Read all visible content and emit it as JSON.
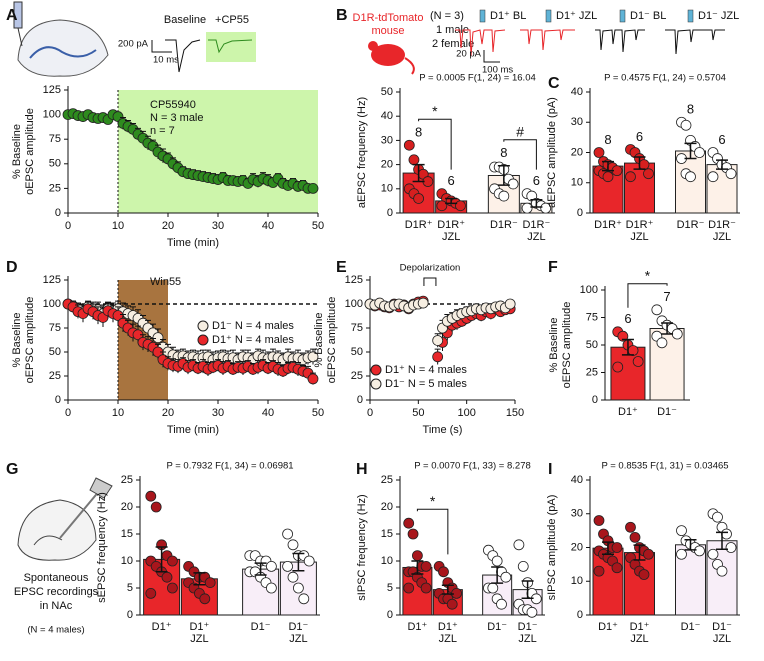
{
  "chart_data": [
    {
      "panel": "A",
      "type": "timecourse",
      "trace_labels": [
        "Baseline",
        "+CP55"
      ],
      "scale_labels": [
        "200 pA",
        "10 ms"
      ],
      "annotation": [
        "CP55940",
        "N = 3 male",
        "n = 7"
      ],
      "shade": [
        10,
        50
      ],
      "shade_color": "#cdf5ab",
      "xlabel": "Time (min)",
      "ylabel": [
        "% Baseline",
        "oEPSC amplitude"
      ],
      "xlim": [
        0,
        50
      ],
      "ylim": [
        0,
        125
      ],
      "xticks": [
        0,
        10,
        20,
        30,
        40,
        50
      ],
      "yticks": [
        0,
        25,
        50,
        75,
        100,
        125
      ],
      "x": [
        0,
        1,
        2,
        3,
        4,
        5,
        6,
        7,
        8,
        9,
        10,
        11,
        12,
        13,
        14,
        15,
        16,
        17,
        18,
        19,
        20,
        21,
        22,
        23,
        24,
        25,
        26,
        27,
        28,
        29,
        30,
        31,
        32,
        33,
        34,
        35,
        36,
        37,
        38,
        39,
        40,
        41,
        42,
        43,
        44,
        45,
        46,
        47,
        48,
        49
      ],
      "series": [
        {
          "color": "#2e8b1e",
          "values": [
            100,
            101,
            99,
            98,
            100,
            97,
            96,
            97,
            95,
            100,
            98,
            91,
            88,
            85,
            80,
            76,
            71,
            68,
            62,
            58,
            55,
            50,
            46,
            42,
            40,
            39,
            38,
            37,
            36,
            35,
            34,
            36,
            33,
            33,
            32,
            33,
            30,
            34,
            32,
            35,
            33,
            31,
            35,
            30,
            28,
            30,
            27,
            28,
            25,
            25
          ],
          "errors": [
            2,
            2,
            3,
            3,
            2,
            3,
            3,
            3,
            4,
            3,
            4,
            6,
            6,
            6,
            6,
            7,
            7,
            6,
            7,
            7,
            6,
            6,
            6,
            5,
            5,
            5,
            5,
            5,
            5,
            5,
            5,
            5,
            5,
            4,
            5,
            5,
            5,
            6,
            6,
            6,
            6,
            5,
            5,
            5,
            5,
            5,
            5,
            5,
            4,
            4
          ]
        }
      ]
    },
    {
      "panel": "B",
      "type": "bar",
      "mouse_label": [
        "D1R-tdTomato",
        "mouse"
      ],
      "cohort": [
        "(N = 3)",
        "1 male",
        "2 female"
      ],
      "trace_labels": [
        "D1⁺ BL",
        "D1⁺ JZL",
        "D1⁻ BL",
        "D1⁻ JZL"
      ],
      "scale_labels": [
        "20 pA",
        "100 ms"
      ],
      "stats": "P = 0.0005  F(1, 24) = 16.04",
      "ylabel": [
        "aEPSC frequency (Hz)"
      ],
      "categories": [
        [
          "D1R⁺"
        ],
        [
          "D1R⁺",
          "JZL"
        ],
        [
          "D1R⁻"
        ],
        [
          "D1R⁻",
          "JZL"
        ]
      ],
      "values": [
        16.5,
        5,
        15.5,
        4
      ],
      "errors": [
        3.5,
        1,
        4,
        1.5
      ],
      "colors": [
        "#e8262a",
        "#e8262a",
        "#fdf1e8",
        "#fdf1e8"
      ],
      "point_colors": [
        "#d61f1f",
        "#d61f1f",
        "#ffffff",
        "#ffffff"
      ],
      "points": [
        [
          28,
          22,
          18,
          16,
          13,
          10,
          8,
          6
        ],
        [
          8,
          6,
          5,
          4,
          3,
          3
        ],
        [
          19,
          19,
          18,
          14,
          12,
          10,
          8,
          7
        ],
        [
          8,
          7,
          4,
          3,
          2,
          2
        ]
      ],
      "n_labels": [
        8,
        6,
        8,
        6
      ],
      "significance": [
        "*",
        "#"
      ],
      "ylim": [
        0,
        50
      ],
      "yticks": [
        0,
        10,
        20,
        30,
        40,
        50
      ]
    },
    {
      "panel": "C",
      "type": "bar",
      "stats": "P = 0.4575  F(1, 24) = 0.5704",
      "ylabel": [
        "aEPSC amplitude (pA)"
      ],
      "categories": [
        [
          "D1R⁺"
        ],
        [
          "D1R⁺",
          "JZL"
        ],
        [
          "D1R⁻"
        ],
        [
          "D1R⁻",
          "JZL"
        ]
      ],
      "values": [
        15.5,
        16.5,
        20.5,
        16
      ],
      "errors": [
        1.5,
        2,
        2.5,
        1.5
      ],
      "colors": [
        "#e8262a",
        "#e8262a",
        "#fdf1e8",
        "#fdf1e8"
      ],
      "point_colors": [
        "#d61f1f",
        "#d61f1f",
        "#ffffff",
        "#ffffff"
      ],
      "points": [
        [
          20,
          17,
          16,
          15,
          14,
          14,
          13,
          12
        ],
        [
          21,
          20,
          18,
          16,
          13,
          12
        ],
        [
          30,
          29,
          24,
          22,
          20,
          18,
          13,
          12
        ],
        [
          20,
          18,
          16,
          15,
          13,
          12
        ]
      ],
      "n_labels": [
        8,
        6,
        8,
        6
      ],
      "ylim": [
        0,
        40
      ],
      "yticks": [
        0,
        10,
        20,
        30,
        40
      ]
    },
    {
      "panel": "D",
      "type": "timecourse",
      "annotation": [
        "Win55"
      ],
      "shade": [
        10,
        20
      ],
      "shade_color": "#a8743f",
      "reference": 100,
      "legend": "center right",
      "xlabel": "Time (min)",
      "ylabel": [
        "% Baseline",
        "oEPSC amplitude"
      ],
      "xlim": [
        0,
        50
      ],
      "ylim": [
        0,
        125
      ],
      "xticks": [
        0,
        10,
        20,
        30,
        40,
        50
      ],
      "yticks": [
        0,
        25,
        50,
        75,
        100,
        125
      ],
      "x": [
        0,
        1,
        2,
        3,
        4,
        5,
        6,
        7,
        8,
        9,
        10,
        11,
        12,
        13,
        14,
        15,
        16,
        17,
        18,
        19,
        20,
        21,
        22,
        23,
        24,
        25,
        26,
        27,
        28,
        29,
        30,
        31,
        32,
        33,
        34,
        35,
        36,
        37,
        38,
        39,
        40,
        41,
        42,
        43,
        44,
        45,
        46,
        47,
        48,
        49
      ],
      "series": [
        {
          "name": "D1⁻ N = 4 males",
          "color": "#f6eee2",
          "values": [
            100,
            98,
            95,
            92,
            97,
            95,
            94,
            90,
            95,
            93,
            95,
            92,
            90,
            88,
            85,
            80,
            75,
            70,
            65,
            55,
            50,
            47,
            45,
            46,
            44,
            45,
            43,
            44,
            45,
            42,
            44,
            45,
            43,
            44,
            42,
            45,
            44,
            42,
            46,
            44,
            43,
            45,
            44,
            42,
            45,
            43,
            44,
            42,
            44,
            45
          ],
          "errors": [
            3,
            5,
            6,
            8,
            6,
            7,
            8,
            9,
            7,
            8,
            8,
            9,
            8,
            9,
            9,
            8,
            8,
            9,
            9,
            8,
            8,
            8,
            7,
            7,
            7,
            7,
            8,
            8,
            7,
            8,
            7,
            7,
            8,
            8,
            7,
            7,
            8,
            7,
            7,
            8,
            7,
            8,
            7,
            7,
            8,
            7,
            8,
            7,
            7,
            8
          ]
        },
        {
          "name": "D1⁺ N = 4 males",
          "color": "#e8262a",
          "values": [
            100,
            97,
            92,
            90,
            95,
            92,
            88,
            86,
            93,
            90,
            88,
            80,
            75,
            70,
            68,
            60,
            58,
            55,
            50,
            42,
            38,
            36,
            35,
            38,
            34,
            36,
            33,
            35,
            32,
            34,
            36,
            33,
            35,
            32,
            34,
            33,
            35,
            32,
            34,
            36,
            33,
            35,
            32,
            30,
            33,
            34,
            32,
            30,
            28,
            22
          ],
          "errors": [
            3,
            6,
            7,
            9,
            7,
            8,
            9,
            10,
            8,
            9,
            9,
            9,
            8,
            9,
            9,
            8,
            8,
            9,
            8,
            8,
            7,
            7,
            7,
            6,
            7,
            6,
            6,
            7,
            7,
            6,
            6,
            7,
            6,
            6,
            6,
            7,
            6,
            6,
            7,
            6,
            6,
            6,
            7,
            6,
            6,
            6,
            7,
            6,
            7,
            6
          ]
        }
      ]
    },
    {
      "panel": "E",
      "type": "timecourse",
      "event": {
        "label": "Depolarization",
        "x": 62
      },
      "reference": 100,
      "legend": "lower left",
      "xlabel": "Time (s)",
      "ylabel": [
        "% Baseline",
        "oEPSC amplitude"
      ],
      "xlim": [
        0,
        150
      ],
      "ylim": [
        0,
        125
      ],
      "xticks": [
        0,
        50,
        100,
        150
      ],
      "yticks": [
        0,
        25,
        50,
        75,
        100,
        125
      ],
      "x": [
        0,
        5,
        10,
        15,
        20,
        25,
        30,
        35,
        40,
        45,
        50,
        55,
        60,
        65,
        70,
        75,
        80,
        85,
        90,
        95,
        100,
        105,
        110,
        115,
        120,
        125,
        130,
        135,
        140,
        145
      ],
      "series": [
        {
          "name": "D1⁺ N = 4 males",
          "color": "#e8262a",
          "values": [
            100,
            98,
            99,
            97,
            96,
            100,
            97,
            99,
            95,
            100,
            102,
            103,
            null,
            null,
            45,
            60,
            70,
            78,
            80,
            82,
            85,
            88,
            90,
            88,
            92,
            90,
            95,
            92,
            94,
            95
          ],
          "errors": [
            3,
            4,
            3,
            4,
            5,
            4,
            3,
            4,
            5,
            4,
            3,
            4,
            null,
            null,
            8,
            9,
            8,
            7,
            7,
            6,
            6,
            6,
            5,
            6,
            5,
            6,
            5,
            5,
            5,
            5
          ]
        },
        {
          "name": "D1⁻ N = 5 males",
          "color": "#f6eee2",
          "values": [
            100,
            99,
            101,
            98,
            97,
            99,
            100,
            98,
            96,
            99,
            100,
            101,
            null,
            null,
            62,
            75,
            82,
            85,
            88,
            90,
            92,
            93,
            95,
            94,
            96,
            95,
            97,
            98,
            96,
            100
          ],
          "errors": [
            2,
            3,
            3,
            3,
            4,
            3,
            3,
            3,
            4,
            3,
            3,
            3,
            null,
            null,
            7,
            8,
            7,
            6,
            6,
            5,
            5,
            5,
            5,
            5,
            4,
            5,
            4,
            4,
            4,
            4
          ]
        }
      ]
    },
    {
      "panel": "F",
      "type": "bar",
      "ylabel": [
        "% Baseline",
        "oEPSC amplitude"
      ],
      "categories": [
        [
          "D1⁺"
        ],
        [
          "D1⁻"
        ]
      ],
      "values": [
        48,
        65
      ],
      "errors": [
        7,
        5
      ],
      "colors": [
        "#e8262a",
        "#fdf1e8"
      ],
      "point_colors": [
        "#e8262a",
        "#ffffff"
      ],
      "points": [
        [
          62,
          58,
          50,
          45,
          35,
          30
        ],
        [
          82,
          72,
          68,
          65,
          60,
          58,
          52
        ]
      ],
      "n_labels": [
        6,
        7
      ],
      "significance": [
        "*"
      ],
      "ylim": [
        0,
        100
      ],
      "yticks": [
        0,
        25,
        50,
        75,
        100
      ]
    },
    {
      "panel": "G",
      "type": "bar",
      "schematic_text": [
        "Spontaneous",
        "EPSC recordings",
        "in NAc",
        "(N = 4 males)"
      ],
      "stats": "P = 0.7932  F(1, 34) = 0.06981",
      "ylabel": [
        "sEPSC frequency (Hz)"
      ],
      "categories": [
        [
          "D1⁺"
        ],
        [
          "D1⁺",
          "JZL"
        ],
        [
          "D1⁻"
        ],
        [
          "D1⁻",
          "JZL"
        ]
      ],
      "values": [
        10.3,
        6.7,
        8.5,
        9.8
      ],
      "errors": [
        2.3,
        1.1,
        1.1,
        1.6
      ],
      "colors": [
        "#e8262a",
        "#e8262a",
        "#f8eef8",
        "#f8eef8"
      ],
      "point_colors": [
        "#a8161c",
        "#a8161c",
        "#ffffff",
        "#ffffff"
      ],
      "points": [
        [
          22,
          20,
          13,
          11,
          10,
          10,
          9,
          8,
          7,
          5,
          4
        ],
        [
          9,
          8,
          7,
          7,
          6,
          6,
          5,
          4,
          3
        ],
        [
          11,
          11,
          10,
          10,
          9,
          8,
          8,
          7,
          6,
          5
        ],
        [
          15,
          13,
          11,
          11,
          10,
          9,
          7,
          5,
          3
        ]
      ],
      "ylim": [
        0,
        25
      ],
      "yticks": [
        0,
        5,
        10,
        15,
        20,
        25
      ]
    },
    {
      "panel": "H",
      "type": "bar",
      "stats": "P = 0.0070  F(1, 33) = 8.278",
      "ylabel": [
        "sIPSC frequency (Hz)"
      ],
      "categories": [
        [
          "D1⁺"
        ],
        [
          "D1⁺",
          "JZL"
        ],
        [
          "D1⁻"
        ],
        [
          "D1⁻",
          "JZL"
        ]
      ],
      "values": [
        8.8,
        4.7,
        7.4,
        4.7
      ],
      "errors": [
        1.2,
        0.8,
        1.5,
        1.6
      ],
      "colors": [
        "#e8262a",
        "#e8262a",
        "#f8eef8",
        "#f8eef8"
      ],
      "point_colors": [
        "#a8161c",
        "#a8161c",
        "#ffffff",
        "#ffffff"
      ],
      "points": [
        [
          17,
          15,
          11,
          9,
          9,
          8,
          8,
          7,
          6,
          5,
          5
        ],
        [
          9,
          8,
          6,
          5,
          4,
          4,
          3,
          3,
          2
        ],
        [
          12,
          11,
          10,
          8,
          7,
          5,
          5,
          3,
          2
        ],
        [
          13,
          9,
          6,
          4,
          3,
          2,
          1,
          1,
          0.5
        ]
      ],
      "significance": [
        "*",
        null
      ],
      "ylim": [
        0,
        25
      ],
      "yticks": [
        0,
        5,
        10,
        15,
        20,
        25
      ]
    },
    {
      "panel": "I",
      "type": "bar",
      "stats": "P = 0.8535  F(1, 31) = 0.03465",
      "ylabel": [
        "sIPSC amplitude (pA)"
      ],
      "categories": [
        [
          "D1⁺"
        ],
        [
          "D1⁺",
          "JZL"
        ],
        [
          "D1⁻"
        ],
        [
          "D1⁻",
          "JZL"
        ]
      ],
      "values": [
        19.8,
        18.5,
        20.8,
        22
      ],
      "errors": [
        1.8,
        2.2,
        1.5,
        2.5
      ],
      "colors": [
        "#e8262a",
        "#e8262a",
        "#f8eef8",
        "#f8eef8"
      ],
      "point_colors": [
        "#a8161c",
        "#a8161c",
        "#ffffff",
        "#ffffff"
      ],
      "points": [
        [
          28,
          24,
          22,
          20,
          20,
          19,
          18,
          17,
          16,
          14,
          13
        ],
        [
          26,
          23,
          20,
          19,
          18,
          17,
          15,
          13,
          12
        ],
        [
          25,
          22,
          21,
          20,
          19,
          18
        ],
        [
          30,
          29,
          26,
          24,
          20,
          18,
          15,
          13
        ]
      ],
      "ylim": [
        0,
        40
      ],
      "yticks": [
        0,
        10,
        20,
        30,
        40
      ]
    }
  ]
}
